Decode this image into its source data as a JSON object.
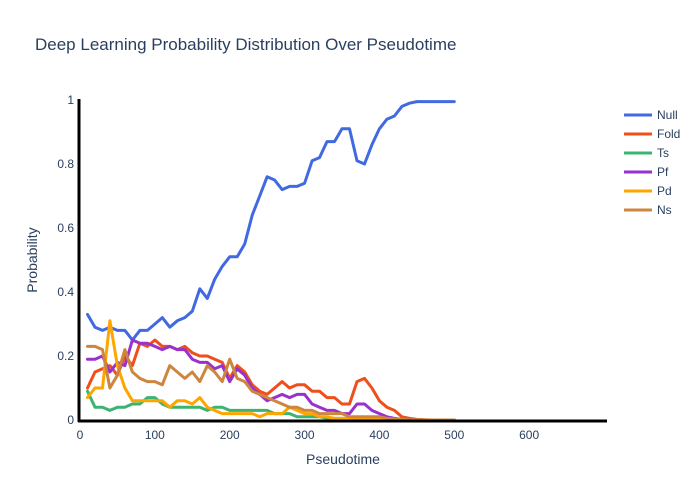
{
  "chart_data": {
    "type": "line",
    "title": "Deep Learning Probability Distribution Over Pseudotime",
    "xlabel": "Pseudotime",
    "ylabel": "Probability",
    "xlim": [
      0,
      700
    ],
    "ylim": [
      0,
      1
    ],
    "x_ticks": [
      0,
      100,
      200,
      300,
      400,
      500,
      600
    ],
    "y_ticks": [
      0,
      0.2,
      0.4,
      0.6,
      0.8,
      1
    ],
    "y_tick_labels": [
      "0",
      "0.2",
      "0.4",
      "0.6",
      "0.8",
      "1"
    ],
    "grid": false,
    "legend_position": "top-right",
    "x": [
      10,
      20,
      30,
      40,
      50,
      60,
      70,
      80,
      90,
      100,
      110,
      120,
      130,
      140,
      150,
      160,
      170,
      180,
      190,
      200,
      210,
      220,
      230,
      240,
      250,
      260,
      270,
      280,
      290,
      300,
      310,
      320,
      330,
      340,
      350,
      360,
      370,
      380,
      390,
      400,
      410,
      420,
      430,
      440,
      450,
      460,
      470,
      480,
      490,
      500
    ],
    "series": [
      {
        "name": "Null",
        "color": "#4169e1",
        "values": [
          0.33,
          0.29,
          0.28,
          0.29,
          0.28,
          0.28,
          0.25,
          0.28,
          0.28,
          0.3,
          0.32,
          0.29,
          0.31,
          0.32,
          0.34,
          0.41,
          0.38,
          0.44,
          0.48,
          0.51,
          0.51,
          0.55,
          0.64,
          0.7,
          0.76,
          0.75,
          0.72,
          0.73,
          0.73,
          0.74,
          0.81,
          0.82,
          0.87,
          0.87,
          0.91,
          0.91,
          0.81,
          0.8,
          0.86,
          0.91,
          0.94,
          0.95,
          0.98,
          0.99,
          0.995,
          0.995,
          0.995,
          0.995,
          0.995,
          0.995
        ]
      },
      {
        "name": "Fold",
        "color": "#f04e1a",
        "values": [
          0.1,
          0.15,
          0.16,
          0.17,
          0.14,
          0.2,
          0.17,
          0.24,
          0.23,
          0.25,
          0.23,
          0.23,
          0.22,
          0.23,
          0.21,
          0.2,
          0.2,
          0.19,
          0.18,
          0.13,
          0.17,
          0.15,
          0.11,
          0.09,
          0.08,
          0.1,
          0.12,
          0.1,
          0.11,
          0.11,
          0.09,
          0.09,
          0.07,
          0.07,
          0.05,
          0.05,
          0.12,
          0.13,
          0.1,
          0.06,
          0.04,
          0.03,
          0.01,
          0.005,
          0.002,
          0.001,
          0,
          0,
          0,
          0
        ]
      },
      {
        "name": "Ts",
        "color": "#3cb371",
        "values": [
          0.09,
          0.04,
          0.04,
          0.03,
          0.04,
          0.04,
          0.05,
          0.05,
          0.07,
          0.07,
          0.05,
          0.04,
          0.04,
          0.04,
          0.04,
          0.04,
          0.03,
          0.04,
          0.04,
          0.03,
          0.03,
          0.03,
          0.03,
          0.03,
          0.03,
          0.02,
          0.02,
          0.02,
          0.01,
          0.01,
          0.01,
          0.01,
          0.005,
          0.005,
          0.005,
          0.005,
          0.005,
          0.005,
          0.005,
          0.002,
          0.001,
          0,
          0,
          0,
          0,
          0,
          0,
          0,
          0,
          0
        ]
      },
      {
        "name": "Pf",
        "color": "#9932cc",
        "values": [
          0.19,
          0.19,
          0.2,
          0.15,
          0.18,
          0.17,
          0.25,
          0.24,
          0.24,
          0.23,
          0.22,
          0.23,
          0.22,
          0.22,
          0.19,
          0.18,
          0.18,
          0.16,
          0.17,
          0.12,
          0.16,
          0.14,
          0.1,
          0.08,
          0.06,
          0.07,
          0.08,
          0.07,
          0.08,
          0.08,
          0.05,
          0.04,
          0.03,
          0.03,
          0.02,
          0.02,
          0.05,
          0.05,
          0.03,
          0.02,
          0.01,
          0.005,
          0.002,
          0.001,
          0,
          0,
          0,
          0,
          0,
          0
        ]
      },
      {
        "name": "Pd",
        "color": "#ffa500",
        "values": [
          0.07,
          0.1,
          0.1,
          0.31,
          0.17,
          0.1,
          0.06,
          0.06,
          0.06,
          0.06,
          0.06,
          0.04,
          0.06,
          0.06,
          0.05,
          0.07,
          0.04,
          0.03,
          0.02,
          0.02,
          0.02,
          0.02,
          0.02,
          0.01,
          0.02,
          0.02,
          0.02,
          0.04,
          0.03,
          0.02,
          0.02,
          0.01,
          0.01,
          0.005,
          0.005,
          0.005,
          0.005,
          0.005,
          0.005,
          0.002,
          0.001,
          0,
          0,
          0,
          0,
          0,
          0,
          0,
          0,
          0
        ]
      },
      {
        "name": "Ns",
        "color": "#cd853f",
        "values": [
          0.23,
          0.23,
          0.22,
          0.1,
          0.14,
          0.22,
          0.15,
          0.13,
          0.12,
          0.12,
          0.11,
          0.17,
          0.15,
          0.13,
          0.15,
          0.12,
          0.17,
          0.15,
          0.12,
          0.19,
          0.13,
          0.12,
          0.09,
          0.08,
          0.07,
          0.06,
          0.05,
          0.04,
          0.04,
          0.03,
          0.03,
          0.02,
          0.02,
          0.02,
          0.02,
          0.01,
          0.01,
          0.01,
          0.01,
          0.01,
          0.005,
          0.003,
          0.002,
          0.001,
          0.001,
          0,
          0,
          0,
          0,
          0
        ]
      }
    ]
  }
}
